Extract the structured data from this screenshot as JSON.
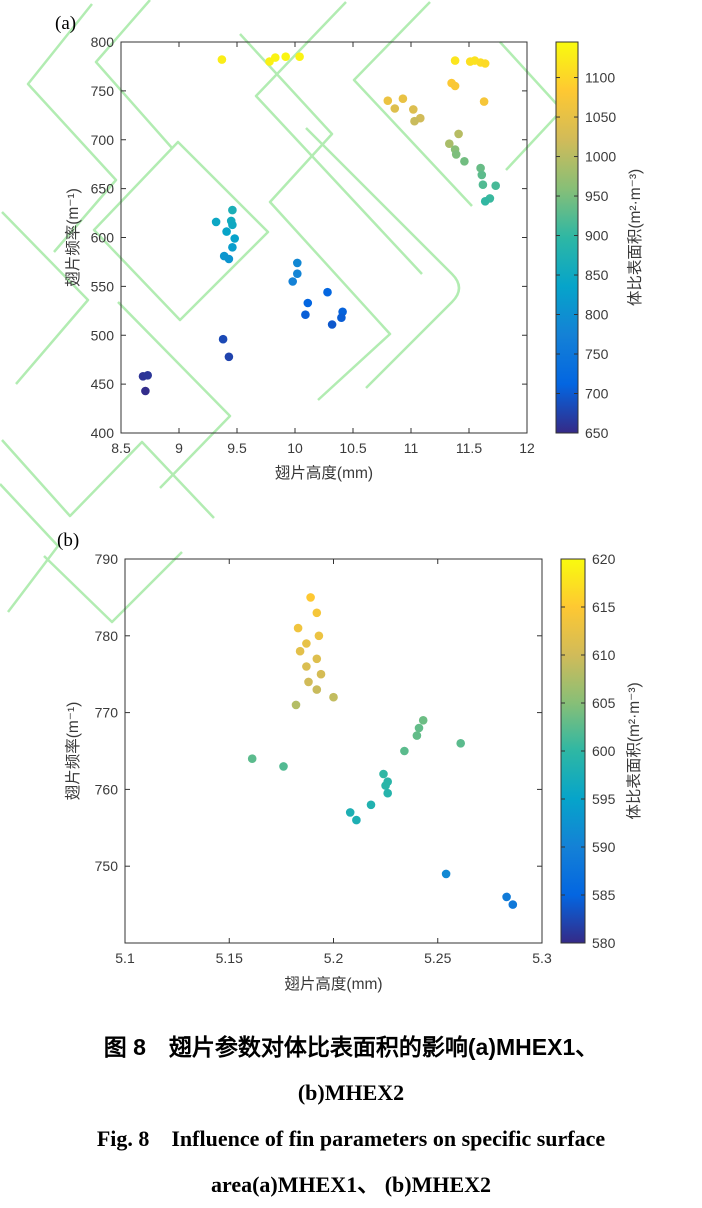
{
  "caption": {
    "zh_line1": "图 8　翅片参数对体比表面积的影响(a)MHEX1、",
    "zh_line2": "(b)MHEX2",
    "en_line1": "Fig. 8　Influence of fin parameters on specific surface",
    "en_line2": "area(a)MHEX1、 (b)MHEX2"
  },
  "colors": {
    "watermark": "#9fe89f",
    "axis": "#333333",
    "tick_text": "#3a3a3a"
  },
  "chart_data": [
    {
      "id": "a",
      "panel_label": "(a)",
      "type": "scatter",
      "xlabel": "翅片高度(mm)",
      "ylabel": "翅片频率(m⁻¹)",
      "colorbar_label": "体比表面积(m²·m⁻³)",
      "xlim": [
        8.5,
        12
      ],
      "ylim": [
        400,
        800
      ],
      "xticks": [
        8.5,
        9,
        9.5,
        10,
        10.5,
        11,
        11.5,
        12
      ],
      "yticks": [
        400,
        450,
        500,
        550,
        600,
        650,
        700,
        750,
        800
      ],
      "clim": [
        650,
        1145
      ],
      "cticks": [
        650,
        700,
        750,
        800,
        850,
        900,
        950,
        1000,
        1050,
        1100
      ],
      "grid": false,
      "colormap": "parula",
      "legend_position": "colorbar-right",
      "points": [
        {
          "x": 9.37,
          "y": 782,
          "v": 1128
        },
        {
          "x": 9.78,
          "y": 780,
          "v": 1132
        },
        {
          "x": 9.83,
          "y": 784,
          "v": 1135
        },
        {
          "x": 9.92,
          "y": 785,
          "v": 1138
        },
        {
          "x": 10.04,
          "y": 785,
          "v": 1135
        },
        {
          "x": 11.38,
          "y": 781,
          "v": 1118
        },
        {
          "x": 11.51,
          "y": 780,
          "v": 1112
        },
        {
          "x": 11.55,
          "y": 781,
          "v": 1115
        },
        {
          "x": 11.6,
          "y": 779,
          "v": 1108
        },
        {
          "x": 11.64,
          "y": 778,
          "v": 1105
        },
        {
          "x": 11.35,
          "y": 758,
          "v": 1080
        },
        {
          "x": 11.38,
          "y": 755,
          "v": 1076
        },
        {
          "x": 11.63,
          "y": 739,
          "v": 1072
        },
        {
          "x": 10.8,
          "y": 740,
          "v": 1058
        },
        {
          "x": 10.93,
          "y": 742,
          "v": 1055
        },
        {
          "x": 10.86,
          "y": 732,
          "v": 1040
        },
        {
          "x": 11.02,
          "y": 731,
          "v": 1036
        },
        {
          "x": 11.08,
          "y": 722,
          "v": 1022
        },
        {
          "x": 11.03,
          "y": 719,
          "v": 1015
        },
        {
          "x": 11.41,
          "y": 706,
          "v": 1000
        },
        {
          "x": 11.33,
          "y": 696,
          "v": 988
        },
        {
          "x": 11.38,
          "y": 690,
          "v": 960
        },
        {
          "x": 11.39,
          "y": 685,
          "v": 952
        },
        {
          "x": 11.46,
          "y": 678,
          "v": 945
        },
        {
          "x": 11.6,
          "y": 671,
          "v": 938
        },
        {
          "x": 11.61,
          "y": 664,
          "v": 930
        },
        {
          "x": 11.62,
          "y": 654,
          "v": 922
        },
        {
          "x": 11.73,
          "y": 653,
          "v": 915
        },
        {
          "x": 11.68,
          "y": 640,
          "v": 905
        },
        {
          "x": 11.64,
          "y": 637,
          "v": 900
        },
        {
          "x": 9.46,
          "y": 628,
          "v": 868
        },
        {
          "x": 9.45,
          "y": 617,
          "v": 856
        },
        {
          "x": 9.32,
          "y": 616,
          "v": 845
        },
        {
          "x": 9.46,
          "y": 613,
          "v": 850
        },
        {
          "x": 9.41,
          "y": 606,
          "v": 838
        },
        {
          "x": 9.48,
          "y": 599,
          "v": 832
        },
        {
          "x": 9.46,
          "y": 590,
          "v": 824
        },
        {
          "x": 9.39,
          "y": 581,
          "v": 812
        },
        {
          "x": 9.43,
          "y": 578,
          "v": 808
        },
        {
          "x": 9.98,
          "y": 555,
          "v": 775
        },
        {
          "x": 10.02,
          "y": 563,
          "v": 780
        },
        {
          "x": 10.02,
          "y": 574,
          "v": 786
        },
        {
          "x": 10.11,
          "y": 533,
          "v": 712
        },
        {
          "x": 10.09,
          "y": 521,
          "v": 705
        },
        {
          "x": 10.28,
          "y": 544,
          "v": 716
        },
        {
          "x": 10.32,
          "y": 511,
          "v": 698
        },
        {
          "x": 10.41,
          "y": 524,
          "v": 708
        },
        {
          "x": 10.4,
          "y": 518,
          "v": 703
        },
        {
          "x": 9.38,
          "y": 496,
          "v": 682
        },
        {
          "x": 9.43,
          "y": 478,
          "v": 676
        },
        {
          "x": 8.69,
          "y": 458,
          "v": 660
        },
        {
          "x": 8.73,
          "y": 459,
          "v": 662
        },
        {
          "x": 8.71,
          "y": 443,
          "v": 653
        }
      ]
    },
    {
      "id": "b",
      "panel_label": "(b)",
      "type": "scatter",
      "xlabel": "翅片高度(mm)",
      "ylabel": "翅片频率(m⁻¹)",
      "colorbar_label": "体比表面积(m²·m⁻³)",
      "xlim": [
        5.1,
        5.3
      ],
      "ylim": [
        740,
        790
      ],
      "xticks": [
        5.1,
        5.15,
        5.2,
        5.25,
        5.3
      ],
      "yticks": [
        750,
        760,
        770,
        780,
        790
      ],
      "clim": [
        580,
        620
      ],
      "cticks": [
        580,
        585,
        590,
        595,
        600,
        605,
        610,
        615,
        620
      ],
      "grid": false,
      "colormap": "parula",
      "legend_position": "colorbar-right",
      "points": [
        {
          "x": 5.189,
          "y": 785,
          "v": 615
        },
        {
          "x": 5.192,
          "y": 783,
          "v": 614
        },
        {
          "x": 5.183,
          "y": 781,
          "v": 613.5
        },
        {
          "x": 5.193,
          "y": 780,
          "v": 613
        },
        {
          "x": 5.187,
          "y": 779,
          "v": 612.5
        },
        {
          "x": 5.184,
          "y": 778,
          "v": 612
        },
        {
          "x": 5.192,
          "y": 777,
          "v": 611.5
        },
        {
          "x": 5.187,
          "y": 776,
          "v": 611
        },
        {
          "x": 5.194,
          "y": 775,
          "v": 610.5
        },
        {
          "x": 5.188,
          "y": 774,
          "v": 610
        },
        {
          "x": 5.192,
          "y": 773,
          "v": 609.5
        },
        {
          "x": 5.2,
          "y": 772,
          "v": 609
        },
        {
          "x": 5.182,
          "y": 771,
          "v": 608
        },
        {
          "x": 5.161,
          "y": 764,
          "v": 602.5
        },
        {
          "x": 5.176,
          "y": 763,
          "v": 602
        },
        {
          "x": 5.243,
          "y": 769,
          "v": 603.5
        },
        {
          "x": 5.241,
          "y": 768,
          "v": 603
        },
        {
          "x": 5.24,
          "y": 767,
          "v": 603
        },
        {
          "x": 5.234,
          "y": 765,
          "v": 602.5
        },
        {
          "x": 5.261,
          "y": 766,
          "v": 602.5
        },
        {
          "x": 5.224,
          "y": 762,
          "v": 600
        },
        {
          "x": 5.226,
          "y": 761,
          "v": 599.5
        },
        {
          "x": 5.225,
          "y": 760.5,
          "v": 599.5
        },
        {
          "x": 5.226,
          "y": 759.5,
          "v": 599
        },
        {
          "x": 5.218,
          "y": 758,
          "v": 598.5
        },
        {
          "x": 5.208,
          "y": 757,
          "v": 598
        },
        {
          "x": 5.211,
          "y": 756,
          "v": 598
        },
        {
          "x": 5.254,
          "y": 749,
          "v": 591
        },
        {
          "x": 5.283,
          "y": 746,
          "v": 589
        },
        {
          "x": 5.286,
          "y": 745,
          "v": 588.5
        }
      ]
    }
  ]
}
